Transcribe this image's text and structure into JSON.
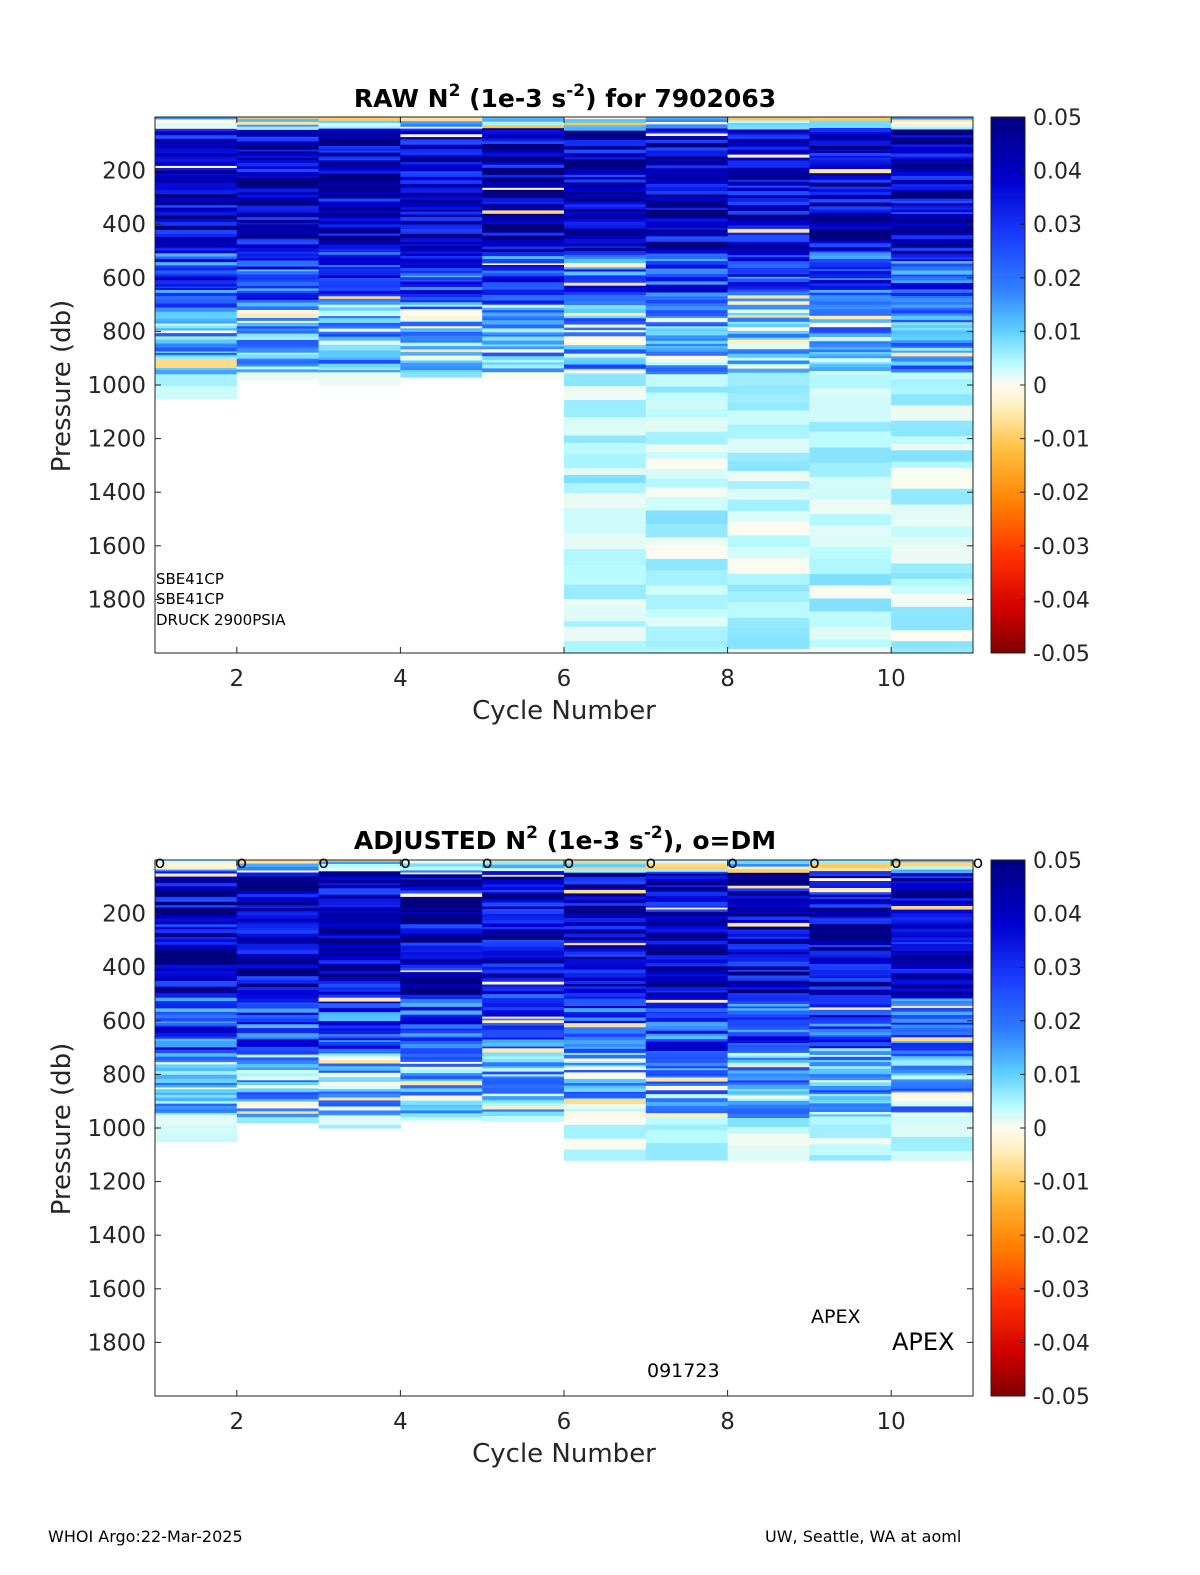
{
  "footer": {
    "left": "WHOI Argo:22-Mar-2025",
    "right": "UW, Seattle, WA at aoml"
  },
  "colorbar": {
    "ticks": [
      "0.05",
      "0.04",
      "0.03",
      "0.02",
      "0.01",
      "0",
      "-0.01",
      "-0.02",
      "-0.03",
      "-0.04",
      "-0.05"
    ],
    "range": [
      -0.05,
      0.05
    ],
    "colormap": "jet-with-white-center"
  },
  "chart_data": [
    {
      "type": "heatmap",
      "title": {
        "main": "RAW N",
        "sup": "2",
        "mid": " (1e-3 s",
        "sup2": "-2",
        "end": ") for 7902063"
      },
      "xlabel": "Cycle Number",
      "ylabel": "Pressure (db)",
      "xlim": [
        1,
        11
      ],
      "ylim": [
        2000,
        0
      ],
      "xticks": [
        "2",
        "4",
        "6",
        "8",
        "10"
      ],
      "yticks": [
        "200",
        "400",
        "600",
        "800",
        "1000",
        "1200",
        "1400",
        "1600",
        "1800"
      ],
      "annotations": [
        "SBE41CP",
        "SBE41CP",
        "DRUCK 2900PSIA"
      ],
      "dm_markers": false,
      "cycles": [
        {
          "cycle": 1,
          "max_pressure": 1050
        },
        {
          "cycle": 2,
          "max_pressure": 980
        },
        {
          "cycle": 3,
          "max_pressure": 1000
        },
        {
          "cycle": 4,
          "max_pressure": 970
        },
        {
          "cycle": 5,
          "max_pressure": 975
        },
        {
          "cycle": 6,
          "max_pressure": 2000
        },
        {
          "cycle": 7,
          "max_pressure": 2000
        },
        {
          "cycle": 8,
          "max_pressure": 2000
        },
        {
          "cycle": 9,
          "max_pressure": 2000
        },
        {
          "cycle": 10,
          "max_pressure": 2000
        }
      ]
    },
    {
      "type": "heatmap",
      "title": {
        "main": "ADJUSTED N",
        "sup": "2",
        "mid": " (1e-3 s",
        "sup2": "-2",
        "end": "), o=DM"
      },
      "xlabel": "Cycle Number",
      "ylabel": "Pressure (db)",
      "xlim": [
        1,
        11
      ],
      "ylim": [
        2000,
        0
      ],
      "xticks": [
        "2",
        "4",
        "6",
        "8",
        "10"
      ],
      "yticks": [
        "200",
        "400",
        "600",
        "800",
        "1000",
        "1200",
        "1400",
        "1600",
        "1800"
      ],
      "annotations": [
        "APEX",
        "APEX",
        "091723"
      ],
      "dm_markers": true,
      "dm_marker_label": "o",
      "cycles": [
        {
          "cycle": 1,
          "max_pressure": 1050
        },
        {
          "cycle": 2,
          "max_pressure": 980
        },
        {
          "cycle": 3,
          "max_pressure": 1000
        },
        {
          "cycle": 4,
          "max_pressure": 970
        },
        {
          "cycle": 5,
          "max_pressure": 975
        },
        {
          "cycle": 6,
          "max_pressure": 1120
        },
        {
          "cycle": 7,
          "max_pressure": 1120
        },
        {
          "cycle": 8,
          "max_pressure": 1120
        },
        {
          "cycle": 9,
          "max_pressure": 1120
        },
        {
          "cycle": 10,
          "max_pressure": 1120
        }
      ]
    }
  ]
}
